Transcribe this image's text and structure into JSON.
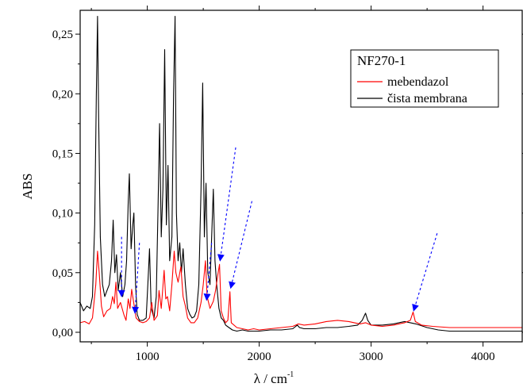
{
  "chart_data": {
    "type": "line",
    "title": "",
    "xlabel": "λ / cm",
    "xlabel_superscript": "-1",
    "ylabel": "ABS",
    "xlim": [
      400,
      4350
    ],
    "ylim": [
      -0.008,
      0.27
    ],
    "x_ticks": [
      1000,
      2000,
      3000,
      4000
    ],
    "x_tick_labels": [
      "1000",
      "2000",
      "3000",
      "4000"
    ],
    "y_ticks": [
      0.0,
      0.05,
      0.1,
      0.15,
      0.2,
      0.25
    ],
    "y_tick_labels": [
      "0,00",
      "0,05",
      "0,10",
      "0,15",
      "0,20",
      "0,25"
    ],
    "grid": false,
    "legend": {
      "title": "NF270-1",
      "placement": "top-right",
      "entries": [
        "mebendazol",
        "čista membrana"
      ]
    },
    "series": [
      {
        "name": "mebendazol",
        "color": "#ff0000",
        "points": [
          [
            400,
            0.008
          ],
          [
            440,
            0.009
          ],
          [
            480,
            0.007
          ],
          [
            510,
            0.012
          ],
          [
            540,
            0.04
          ],
          [
            555,
            0.068
          ],
          [
            570,
            0.05
          ],
          [
            590,
            0.022
          ],
          [
            610,
            0.013
          ],
          [
            640,
            0.018
          ],
          [
            670,
            0.02
          ],
          [
            690,
            0.03
          ],
          [
            705,
            0.024
          ],
          [
            720,
            0.042
          ],
          [
            735,
            0.02
          ],
          [
            760,
            0.025
          ],
          [
            790,
            0.015
          ],
          [
            810,
            0.01
          ],
          [
            830,
            0.028
          ],
          [
            845,
            0.02
          ],
          [
            860,
            0.036
          ],
          [
            880,
            0.024
          ],
          [
            900,
            0.012
          ],
          [
            930,
            0.009
          ],
          [
            960,
            0.008
          ],
          [
            990,
            0.009
          ],
          [
            1020,
            0.012
          ],
          [
            1040,
            0.025
          ],
          [
            1060,
            0.01
          ],
          [
            1090,
            0.014
          ],
          [
            1105,
            0.035
          ],
          [
            1125,
            0.02
          ],
          [
            1150,
            0.052
          ],
          [
            1165,
            0.028
          ],
          [
            1180,
            0.03
          ],
          [
            1200,
            0.018
          ],
          [
            1220,
            0.04
          ],
          [
            1240,
            0.068
          ],
          [
            1255,
            0.05
          ],
          [
            1275,
            0.042
          ],
          [
            1300,
            0.055
          ],
          [
            1320,
            0.03
          ],
          [
            1340,
            0.022
          ],
          [
            1360,
            0.012
          ],
          [
            1390,
            0.008
          ],
          [
            1420,
            0.008
          ],
          [
            1450,
            0.012
          ],
          [
            1480,
            0.025
          ],
          [
            1500,
            0.04
          ],
          [
            1520,
            0.06
          ],
          [
            1535,
            0.03
          ],
          [
            1560,
            0.02
          ],
          [
            1590,
            0.026
          ],
          [
            1610,
            0.035
          ],
          [
            1630,
            0.048
          ],
          [
            1645,
            0.057
          ],
          [
            1660,
            0.018
          ],
          [
            1680,
            0.012
          ],
          [
            1700,
            0.008
          ],
          [
            1720,
            0.01
          ],
          [
            1738,
            0.034
          ],
          [
            1750,
            0.008
          ],
          [
            1800,
            0.004
          ],
          [
            1850,
            0.003
          ],
          [
            1900,
            0.002
          ],
          [
            1950,
            0.003
          ],
          [
            2000,
            0.002
          ],
          [
            2100,
            0.003
          ],
          [
            2200,
            0.004
          ],
          [
            2300,
            0.005
          ],
          [
            2350,
            0.007
          ],
          [
            2400,
            0.006
          ],
          [
            2500,
            0.007
          ],
          [
            2600,
            0.009
          ],
          [
            2700,
            0.01
          ],
          [
            2800,
            0.009
          ],
          [
            2900,
            0.007
          ],
          [
            2950,
            0.008
          ],
          [
            3000,
            0.006
          ],
          [
            3100,
            0.005
          ],
          [
            3200,
            0.006
          ],
          [
            3300,
            0.008
          ],
          [
            3350,
            0.01
          ],
          [
            3375,
            0.017
          ],
          [
            3395,
            0.009
          ],
          [
            3450,
            0.006
          ],
          [
            3550,
            0.005
          ],
          [
            3700,
            0.004
          ],
          [
            3900,
            0.004
          ],
          [
            4100,
            0.004
          ],
          [
            4350,
            0.004
          ]
        ]
      },
      {
        "name": "čista membrana",
        "color": "#000000",
        "points": [
          [
            400,
            0.025
          ],
          [
            430,
            0.018
          ],
          [
            460,
            0.022
          ],
          [
            490,
            0.02
          ],
          [
            510,
            0.03
          ],
          [
            530,
            0.09
          ],
          [
            545,
            0.2
          ],
          [
            555,
            0.265
          ],
          [
            565,
            0.18
          ],
          [
            580,
            0.08
          ],
          [
            600,
            0.04
          ],
          [
            620,
            0.03
          ],
          [
            640,
            0.035
          ],
          [
            660,
            0.04
          ],
          [
            680,
            0.06
          ],
          [
            695,
            0.094
          ],
          [
            710,
            0.05
          ],
          [
            725,
            0.065
          ],
          [
            740,
            0.035
          ],
          [
            760,
            0.05
          ],
          [
            780,
            0.03
          ],
          [
            800,
            0.04
          ],
          [
            815,
            0.06
          ],
          [
            830,
            0.11
          ],
          [
            840,
            0.133
          ],
          [
            855,
            0.07
          ],
          [
            870,
            0.09
          ],
          [
            880,
            0.1
          ],
          [
            895,
            0.04
          ],
          [
            910,
            0.015
          ],
          [
            930,
            0.01
          ],
          [
            960,
            0.01
          ],
          [
            990,
            0.012
          ],
          [
            1010,
            0.05
          ],
          [
            1020,
            0.07
          ],
          [
            1035,
            0.02
          ],
          [
            1060,
            0.012
          ],
          [
            1080,
            0.03
          ],
          [
            1095,
            0.1
          ],
          [
            1110,
            0.175
          ],
          [
            1125,
            0.08
          ],
          [
            1140,
            0.12
          ],
          [
            1155,
            0.237
          ],
          [
            1170,
            0.09
          ],
          [
            1185,
            0.14
          ],
          [
            1200,
            0.06
          ],
          [
            1220,
            0.08
          ],
          [
            1235,
            0.2
          ],
          [
            1248,
            0.265
          ],
          [
            1260,
            0.1
          ],
          [
            1275,
            0.06
          ],
          [
            1290,
            0.075
          ],
          [
            1305,
            0.05
          ],
          [
            1320,
            0.07
          ],
          [
            1340,
            0.04
          ],
          [
            1360,
            0.02
          ],
          [
            1380,
            0.015
          ],
          [
            1400,
            0.012
          ],
          [
            1420,
            0.013
          ],
          [
            1440,
            0.018
          ],
          [
            1460,
            0.04
          ],
          [
            1480,
            0.12
          ],
          [
            1495,
            0.209
          ],
          [
            1510,
            0.08
          ],
          [
            1525,
            0.125
          ],
          [
            1540,
            0.05
          ],
          [
            1560,
            0.04
          ],
          [
            1575,
            0.08
          ],
          [
            1590,
            0.12
          ],
          [
            1605,
            0.06
          ],
          [
            1620,
            0.04
          ],
          [
            1640,
            0.02
          ],
          [
            1660,
            0.012
          ],
          [
            1680,
            0.01
          ],
          [
            1700,
            0.006
          ],
          [
            1730,
            0.004
          ],
          [
            1760,
            0.002
          ],
          [
            1800,
            0.001
          ],
          [
            1850,
            0.002
          ],
          [
            1900,
            0.001
          ],
          [
            2000,
            0.001
          ],
          [
            2100,
            0.002
          ],
          [
            2200,
            0.002
          ],
          [
            2300,
            0.003
          ],
          [
            2340,
            0.006
          ],
          [
            2360,
            0.004
          ],
          [
            2400,
            0.003
          ],
          [
            2500,
            0.003
          ],
          [
            2600,
            0.004
          ],
          [
            2700,
            0.004
          ],
          [
            2800,
            0.005
          ],
          [
            2880,
            0.006
          ],
          [
            2920,
            0.01
          ],
          [
            2950,
            0.016
          ],
          [
            2970,
            0.01
          ],
          [
            3000,
            0.006
          ],
          [
            3100,
            0.006
          ],
          [
            3200,
            0.007
          ],
          [
            3300,
            0.009
          ],
          [
            3350,
            0.008
          ],
          [
            3400,
            0.007
          ],
          [
            3500,
            0.004
          ],
          [
            3600,
            0.002
          ],
          [
            3700,
            0.001
          ],
          [
            3900,
            0.001
          ],
          [
            4100,
            0.001
          ],
          [
            4350,
            0.001
          ]
        ]
      }
    ],
    "annotations": {
      "arrow_color": "#0000ff",
      "arrows": [
        {
          "from": [
            770,
            0.08
          ],
          "to": [
            770,
            0.03
          ]
        },
        {
          "from": [
            930,
            0.075
          ],
          "to": [
            890,
            0.016
          ]
        },
        {
          "from": [
            1575,
            0.075
          ],
          "to": [
            1530,
            0.027
          ]
        },
        {
          "from": [
            1790,
            0.155
          ],
          "to": [
            1650,
            0.06
          ]
        },
        {
          "from": [
            1935,
            0.11
          ],
          "to": [
            1745,
            0.037
          ]
        },
        {
          "from": [
            3590,
            0.083
          ],
          "to": [
            3380,
            0.018
          ]
        }
      ]
    }
  }
}
